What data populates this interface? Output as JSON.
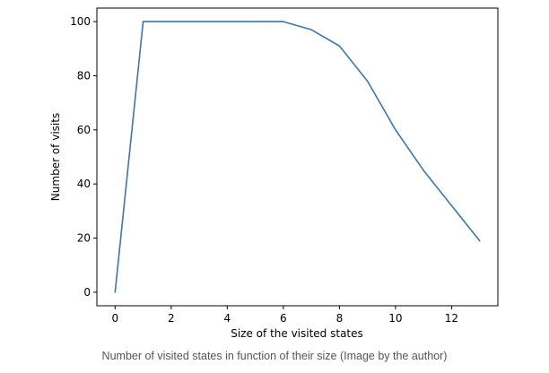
{
  "chart_data": {
    "type": "line",
    "x": [
      0,
      1,
      2,
      3,
      4,
      5,
      6,
      7,
      8,
      9,
      10,
      11,
      12,
      13
    ],
    "series": [
      {
        "values": [
          0,
          100,
          100,
          100,
          100,
          100,
          100,
          97,
          91,
          78,
          60,
          45,
          32,
          19
        ]
      }
    ],
    "xlabel": "Size of the visited states",
    "ylabel": "Number of visits",
    "xlim": [
      -0.65,
      13.65
    ],
    "ylim": [
      -5,
      105
    ],
    "xticks": [
      0,
      2,
      4,
      6,
      8,
      10,
      12
    ],
    "yticks": [
      0,
      20,
      40,
      60,
      80,
      100
    ],
    "grid": false,
    "line_color": "#3d76a8"
  },
  "caption": "Number of visited states in function of their size (Image by the author)"
}
